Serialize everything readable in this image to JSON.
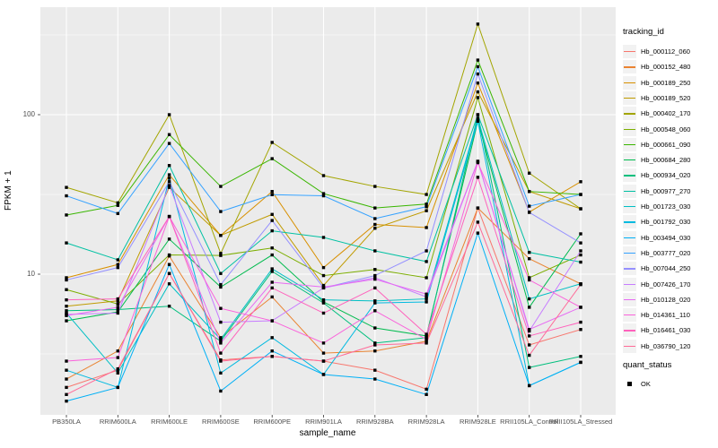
{
  "figure": {
    "legend": {
      "tracking_title": "tracking_id",
      "quant_title": "quant_status",
      "quant_label": "OK"
    }
  },
  "chart_data": {
    "type": "line",
    "title": "",
    "xlabel": "sample_name",
    "ylabel": "FPKM + 1",
    "y_scale": "log10",
    "yticks": [
      10,
      100
    ],
    "ytick_labels": [
      "10",
      "100"
    ],
    "minor_gridlines": [
      3.162,
      31.62,
      316.2
    ],
    "ylim": [
      1.5,
      420
    ],
    "legend_position": "right",
    "point_shape": "filled-square",
    "point_color": "#000000",
    "panel_color": "#ebebeb",
    "grid_color": "#ffffff",
    "categories": [
      "PB350LA",
      "RRIM600LA",
      "RRIM600LE",
      "RRIM600SE",
      "RRIM600PE",
      "RRIM901LA",
      "RRIM928BA",
      "RRIM928LA",
      "RRIM928LE",
      "RRII105LA_Control",
      "RRII105LA_Stressed"
    ],
    "series": [
      {
        "name": "Hb_000112_060",
        "color": "#F8766D",
        "values": [
          1.95,
          2.5,
          10.1,
          2.9,
          3.05,
          2.85,
          2.5,
          1.9,
          26,
          3.6,
          4.5
        ]
      },
      {
        "name": "Hb_000152_480",
        "color": "#EA8331",
        "values": [
          2.2,
          3.3,
          13,
          4.0,
          7.2,
          3.2,
          3.3,
          3.8,
          26,
          12.5,
          8.7
        ]
      },
      {
        "name": "Hb_000189_250",
        "color": "#D89000",
        "values": [
          9.5,
          11.5,
          42,
          17.5,
          33,
          11,
          20.5,
          19.6,
          158,
          24.5,
          38
        ]
      },
      {
        "name": "Hb_000189_520",
        "color": "#C09B00",
        "values": [
          6.3,
          6.8,
          35,
          17.5,
          23.7,
          8.5,
          19.4,
          25,
          139,
          33,
          25.7
        ]
      },
      {
        "name": "Hb_000402_170",
        "color": "#A3A500",
        "values": [
          35,
          28,
          100,
          13.5,
          67,
          41.5,
          35.5,
          31.6,
          370,
          43,
          25.7
        ]
      },
      {
        "name": "Hb_000548_060",
        "color": "#7CAE00",
        "values": [
          8.0,
          6.5,
          13.2,
          13.1,
          14.6,
          9.8,
          10.7,
          9.5,
          128,
          9.5,
          13.2
        ]
      },
      {
        "name": "Hb_000661_090",
        "color": "#39B600",
        "values": [
          23.5,
          27,
          75,
          35.5,
          53,
          32,
          26,
          27.5,
          220,
          33,
          31.6
        ]
      },
      {
        "name": "Hb_000684_280",
        "color": "#00BB4E",
        "values": [
          5.1,
          5.8,
          16.6,
          8.3,
          13.2,
          6.7,
          4.6,
          4.1,
          91,
          6.2,
          17.9
        ]
      },
      {
        "name": "Hb_000934_020",
        "color": "#00BF7D",
        "values": [
          5.9,
          6.0,
          6.3,
          3.8,
          10.4,
          6.6,
          3.7,
          4.0,
          100,
          2.6,
          3.05
        ]
      },
      {
        "name": "Hb_000977_270",
        "color": "#00C1A3",
        "values": [
          15.7,
          12.3,
          48,
          10.1,
          18.7,
          17,
          14,
          12,
          100,
          13.7,
          11.9
        ]
      },
      {
        "name": "Hb_001723_030",
        "color": "#00BFC4",
        "values": [
          5.7,
          2.4,
          8.7,
          3.9,
          10.8,
          6.9,
          6.8,
          7.0,
          95,
          7.0,
          8.7
        ]
      },
      {
        "name": "Hb_001792_030",
        "color": "#00BAE0",
        "values": [
          2.5,
          1.95,
          40,
          2.4,
          4.0,
          2.35,
          6.6,
          6.7,
          91,
          2.0,
          2.8
        ]
      },
      {
        "name": "Hb_003494_030",
        "color": "#00B0F6",
        "values": [
          1.6,
          1.95,
          11.5,
          1.85,
          3.3,
          2.35,
          2.2,
          1.76,
          18.1,
          2.0,
          2.8
        ]
      },
      {
        "name": "Hb_003777_020",
        "color": "#35A2FF",
        "values": [
          31,
          24,
          66,
          24.7,
          31.5,
          31,
          22.3,
          26.5,
          200,
          26.7,
          31.6
        ]
      },
      {
        "name": "Hb_007044_250",
        "color": "#9590FF",
        "values": [
          9.2,
          11,
          38,
          8.6,
          21.7,
          8.2,
          9.8,
          14,
          180,
          24.4,
          15.7
        ]
      },
      {
        "name": "Hb_007426_170",
        "color": "#C77CFF",
        "values": [
          5.6,
          5.7,
          36,
          5.0,
          5.1,
          8.2,
          9.5,
          7.2,
          51,
          4.4,
          14
        ]
      },
      {
        "name": "Hb_010128_020",
        "color": "#E76BF3",
        "values": [
          5.5,
          6.2,
          23,
          3.7,
          8.9,
          8.3,
          9.3,
          7.5,
          51,
          4.5,
          6.2
        ]
      },
      {
        "name": "Hb_014361_110",
        "color": "#FA62DB",
        "values": [
          2.85,
          3.0,
          23,
          6.1,
          5.1,
          3.7,
          5.9,
          3.9,
          50,
          9.2,
          6.2
        ]
      },
      {
        "name": "Hb_016461_030",
        "color": "#FF62BC",
        "values": [
          6.9,
          7.0,
          23,
          3.2,
          8.2,
          5.7,
          8.2,
          4.2,
          40.5,
          4.1,
          5.0
        ]
      },
      {
        "name": "Hb_036790_120",
        "color": "#FF6A98",
        "values": [
          1.76,
          2.55,
          10.1,
          2.85,
          3.05,
          2.85,
          3.6,
          3.7,
          21.2,
          3.1,
          8.6
        ]
      }
    ],
    "quant_status": {
      "title": "quant_status",
      "items": [
        "OK"
      ]
    }
  }
}
